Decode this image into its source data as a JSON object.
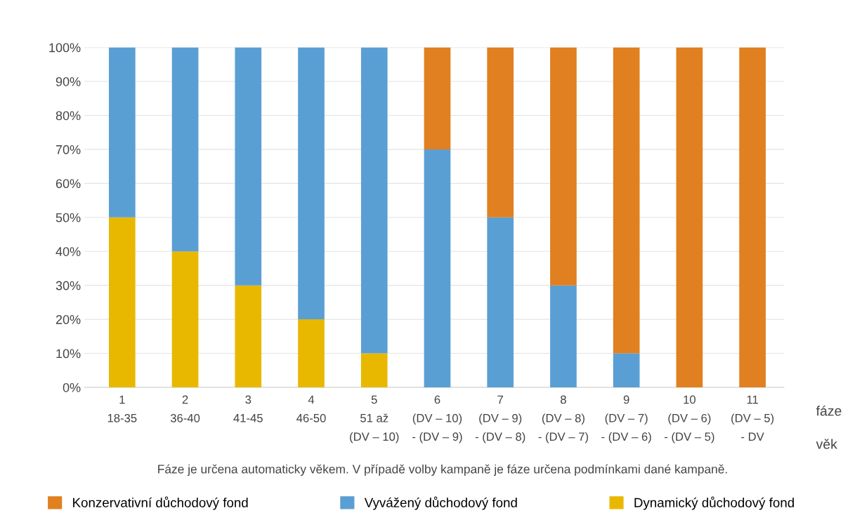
{
  "chart_data": {
    "type": "bar",
    "stacked": true,
    "categories": [
      "1\n18-35",
      "2\n36-40",
      "3\n41-45",
      "4\n46-50",
      "5\n51 až\n(DV – 10)",
      "6\n(DV – 10)\n- (DV – 9)",
      "7\n(DV – 9)\n- (DV – 8)",
      "8\n(DV – 8)\n- (DV – 7)",
      "9\n(DV – 7)\n- (DV – 6)",
      "10\n(DV – 6)\n- (DV – 5)",
      "11\n(DV – 5)\n- DV"
    ],
    "series": [
      {
        "name": "Dynamický důchodový fond",
        "color": "#e8b800",
        "values": [
          50,
          40,
          30,
          20,
          10,
          0,
          0,
          0,
          0,
          0,
          0
        ]
      },
      {
        "name": "Vyvážený důchodový fond",
        "color": "#5a9fd4",
        "values": [
          50,
          60,
          70,
          80,
          90,
          70,
          50,
          30,
          10,
          0,
          0
        ]
      },
      {
        "name": "Konzervativní důchodový fond",
        "color": "#e08020",
        "values": [
          0,
          0,
          0,
          0,
          0,
          30,
          50,
          70,
          90,
          100,
          100
        ]
      }
    ],
    "ylim": [
      0,
      100
    ],
    "yticks": [
      {
        "value": 0,
        "label": "0%"
      },
      {
        "value": 10,
        "label": "10%"
      },
      {
        "value": 20,
        "label": "20%"
      },
      {
        "value": 30,
        "label": "30%"
      },
      {
        "value": 40,
        "label": "40%"
      },
      {
        "value": 50,
        "label": "50%"
      },
      {
        "value": 60,
        "label": "60%"
      },
      {
        "value": 70,
        "label": "70%"
      },
      {
        "value": 80,
        "label": "80%"
      },
      {
        "value": 90,
        "label": "90%"
      },
      {
        "value": 100,
        "label": "100%"
      }
    ],
    "grid": "y",
    "legend": "bottom",
    "annotations": [
      "fáze",
      "věk",
      "Fáze je určena automaticky věkem. V případě volby kampaně je fáze určena podmínkami dané kampaně."
    ]
  }
}
